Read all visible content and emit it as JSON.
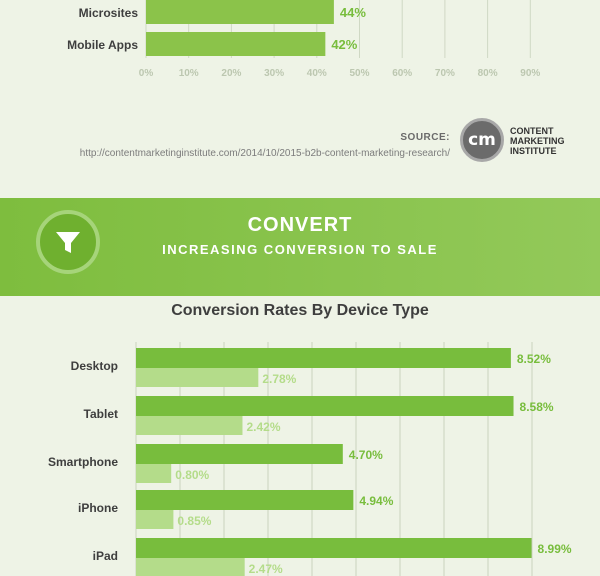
{
  "chart_data": [
    {
      "type": "bar",
      "categories": [
        "Microsites",
        "Mobile Apps"
      ],
      "values": [
        44,
        42
      ],
      "value_labels": [
        "44%",
        "42%"
      ],
      "xlim": [
        0,
        90
      ],
      "x_ticks": [
        "0%",
        "10%",
        "20%",
        "30%",
        "40%",
        "50%",
        "60%",
        "70%",
        "80%",
        "90%"
      ],
      "bar_color": "#8bc34a"
    },
    {
      "type": "bar",
      "title": "Conversion Rates By Device Type",
      "categories": [
        "Desktop",
        "Tablet",
        "Smartphone",
        "iPhone",
        "iPad"
      ],
      "series": [
        {
          "values": [
            8.52,
            8.58,
            4.7,
            4.94,
            8.99
          ],
          "labels": [
            "8.52%",
            "8.58%",
            "4.70%",
            "4.94%",
            "8.99%"
          ],
          "color": "#78bd3d"
        },
        {
          "values": [
            2.78,
            2.42,
            0.8,
            0.85,
            2.47
          ],
          "labels": [
            "2.78%",
            "2.42%",
            "0.80%",
            "0.85%",
            "2.47%"
          ],
          "color": "#b4dc8a"
        }
      ],
      "xlim": [
        0,
        9
      ],
      "grid": true
    }
  ],
  "source": {
    "label": "SOURCE:",
    "url": "http://contentmarketinginstitute.com/2014/10/2015-b2b-content-marketing-research/",
    "logo_text": "cm",
    "logo_name_lines": [
      "CONTENT",
      "MARKETING",
      "INSTITUTE"
    ]
  },
  "banner": {
    "title": "CONVERT",
    "subtitle": "INCREASING CONVERSION TO SALE",
    "icon": "funnel-icon"
  },
  "colors": {
    "accent": "#8bc34a",
    "dark_green": "#6fb02f",
    "label_green": "#78bd3d",
    "light_label_green": "#b4dc8a",
    "background": "#eef3e6"
  }
}
